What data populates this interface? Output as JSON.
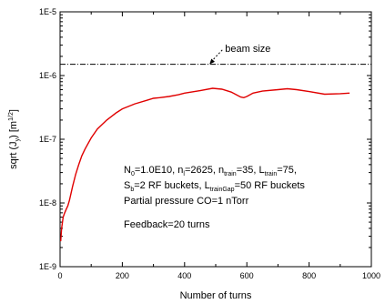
{
  "chart_data": {
    "type": "line",
    "title": "",
    "xlabel": "Number of turns",
    "ylabel": "sqrt (J_y) [m^1/2]",
    "ylabel_parts": {
      "pre": "sqrt (J",
      "sub": "y",
      "mid": ") [m",
      "sup": "1/2",
      "post": "]"
    },
    "xlim": [
      0,
      1000
    ],
    "ylim": [
      1e-09,
      1e-05
    ],
    "yscale": "log",
    "grid": false,
    "x_ticks": [
      "0",
      "200",
      "400",
      "600",
      "800",
      "1000"
    ],
    "x_tick_values": [
      0,
      200,
      400,
      600,
      800,
      1000
    ],
    "y_ticks": [
      "1E-9",
      "1E-8",
      "1E-7",
      "1E-6",
      "1E-5"
    ],
    "y_tick_values": [
      1e-09,
      1e-08,
      1e-07,
      1e-06,
      1e-05
    ],
    "series": [
      {
        "color": "#e00000",
        "style": "solid",
        "x": [
          2,
          5,
          10,
          15,
          20,
          25,
          30,
          40,
          50,
          60,
          70,
          80,
          100,
          120,
          150,
          180,
          200,
          240,
          280,
          300,
          320,
          350,
          380,
          400,
          450,
          490,
          520,
          550,
          570,
          580,
          590,
          600,
          620,
          650,
          700,
          730,
          760,
          800,
          850,
          900,
          930
        ],
        "y": [
          2.5e-09,
          4e-09,
          6e-09,
          7e-09,
          8e-09,
          9e-09,
          1.1e-08,
          1.8e-08,
          2.8e-08,
          4e-08,
          5.5e-08,
          7e-08,
          1.05e-07,
          1.45e-07,
          2e-07,
          2.6e-07,
          3e-07,
          3.6e-07,
          4.1e-07,
          4.4e-07,
          4.5e-07,
          4.7e-07,
          5e-07,
          5.3e-07,
          5.8e-07,
          6.3e-07,
          6.1e-07,
          5.5e-07,
          4.9e-07,
          4.6e-07,
          4.5e-07,
          4.7e-07,
          5.3e-07,
          5.7e-07,
          6e-07,
          6.2e-07,
          6e-07,
          5.6e-07,
          5.1e-07,
          5.2e-07,
          5.3e-07
        ]
      },
      {
        "color": "#000000",
        "style": "dash-dot",
        "x": [
          0,
          1000
        ],
        "y": [
          1.5e-06,
          1.5e-06
        ]
      }
    ],
    "annotations": {
      "beam_size": {
        "text": "beam size",
        "x": 530,
        "y": 2.7e-06,
        "arrow_to": [
          480,
          1.5e-06
        ]
      },
      "params": {
        "n0": {
          "pre": "N",
          "sub": "0",
          "post": "=1.0E10, n"
        },
        "nl": {
          "sub": "l",
          "post": "=2625, n"
        },
        "ntr": {
          "sub": "train",
          "post": "=35, L"
        },
        "ltr": {
          "sub": "train",
          "post": "=75,"
        },
        "sb": {
          "pre": "S",
          "sub": "b",
          "post": "=2 RF buckets, L"
        },
        "gap": {
          "sub": "trainGap",
          "post": "=50 RF buckets"
        },
        "line3": "Partial pressure CO=1 nTorr",
        "line4": "Feedback=20 turns"
      }
    }
  }
}
